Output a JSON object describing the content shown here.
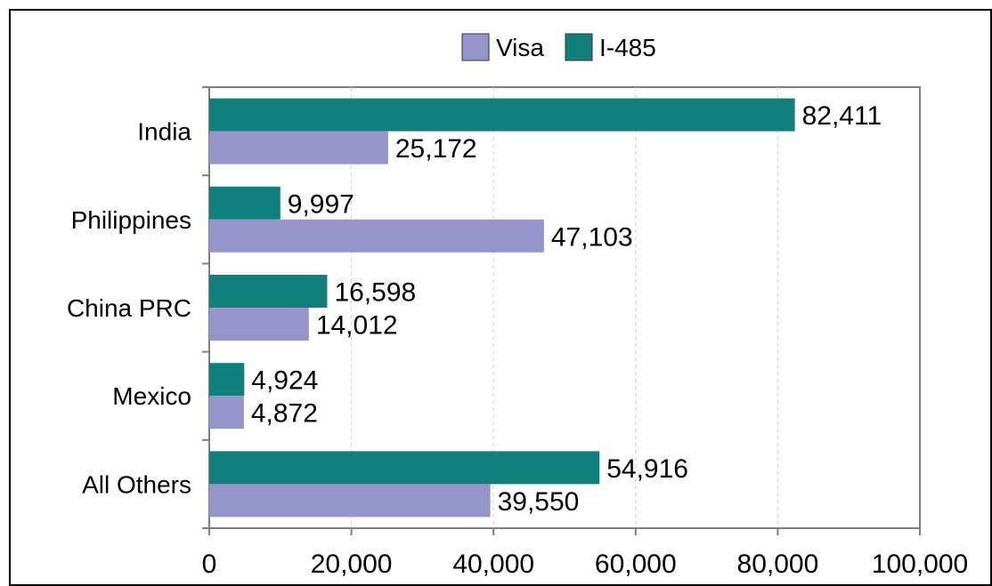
{
  "chart_data": {
    "type": "bar",
    "orientation": "horizontal",
    "title": "",
    "xlabel": "",
    "ylabel": "",
    "categories": [
      "India",
      "Philippines",
      "China PRC",
      "Mexico",
      "All Others"
    ],
    "series": [
      {
        "name": "Visa",
        "color": "#9595cc",
        "values": [
          25172,
          47103,
          14012,
          4872,
          39550
        ],
        "labels": [
          "25,172",
          "47,103",
          "14,012",
          "4,872",
          "39,550"
        ]
      },
      {
        "name": "I-485",
        "color": "#10807c",
        "values": [
          82411,
          9997,
          16598,
          4924,
          54916
        ],
        "labels": [
          "82,411",
          "9,997",
          "16,598",
          "4,924",
          "54,916"
        ]
      }
    ],
    "xlim": [
      0,
      100000
    ],
    "xticks": [
      0,
      20000,
      40000,
      60000,
      80000,
      100000
    ],
    "xtick_labels": [
      "0",
      "20,000",
      "40,000",
      "60,000",
      "80,000",
      "100,000"
    ],
    "grid": "vertical-dashed",
    "legend": "top-center"
  }
}
